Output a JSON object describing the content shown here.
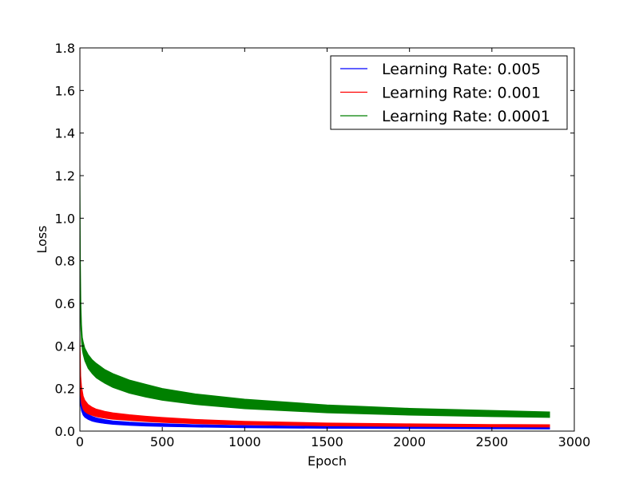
{
  "chart_data": {
    "type": "line",
    "title": "",
    "xlabel": "Epoch",
    "ylabel": "Loss",
    "xlim": [
      0,
      3000
    ],
    "ylim": [
      0.0,
      1.8
    ],
    "x_ticks": [
      "0",
      "500",
      "1000",
      "1500",
      "2000",
      "2500",
      "3000"
    ],
    "y_ticks": [
      "0.0",
      "0.2",
      "0.4",
      "0.6",
      "0.8",
      "1.0",
      "1.2",
      "1.4",
      "1.6",
      "1.8"
    ],
    "grid": false,
    "legend_position": "top-right",
    "series": [
      {
        "name": "Learning Rate: 0.005",
        "color": "#0000ff",
        "x": [
          0,
          5,
          10,
          20,
          30,
          50,
          75,
          100,
          150,
          200,
          300,
          400,
          500,
          700,
          1000,
          1500,
          2000,
          2500,
          2850
        ],
        "upper": [
          0.2,
          0.15,
          0.125,
          0.105,
          0.092,
          0.078,
          0.069,
          0.062,
          0.054,
          0.048,
          0.042,
          0.038,
          0.035,
          0.03,
          0.026,
          0.022,
          0.02,
          0.019,
          0.018
        ],
        "lower": [
          0.18,
          0.12,
          0.095,
          0.075,
          0.065,
          0.055,
          0.047,
          0.042,
          0.036,
          0.032,
          0.027,
          0.024,
          0.022,
          0.019,
          0.016,
          0.013,
          0.012,
          0.011,
          0.01
        ]
      },
      {
        "name": "Learning Rate: 0.001",
        "color": "#ff0000",
        "x": [
          0,
          5,
          10,
          20,
          30,
          50,
          75,
          100,
          150,
          200,
          300,
          400,
          500,
          700,
          1000,
          1500,
          2000,
          2500,
          2850
        ],
        "upper": [
          0.45,
          0.26,
          0.21,
          0.165,
          0.145,
          0.125,
          0.112,
          0.103,
          0.093,
          0.086,
          0.077,
          0.07,
          0.064,
          0.055,
          0.046,
          0.038,
          0.034,
          0.031,
          0.03
        ],
        "lower": [
          0.4,
          0.17,
          0.13,
          0.103,
          0.092,
          0.081,
          0.074,
          0.068,
          0.061,
          0.056,
          0.05,
          0.045,
          0.041,
          0.035,
          0.03,
          0.025,
          0.022,
          0.02,
          0.019
        ]
      },
      {
        "name": "Learning Rate: 0.0001",
        "color": "#008000",
        "x": [
          0,
          3,
          6,
          10,
          15,
          20,
          30,
          50,
          75,
          100,
          150,
          200,
          300,
          400,
          500,
          700,
          1000,
          1500,
          2000,
          2500,
          2850
        ],
        "upper": [
          1.25,
          0.8,
          0.6,
          0.5,
          0.44,
          0.42,
          0.39,
          0.36,
          0.335,
          0.318,
          0.29,
          0.27,
          0.24,
          0.22,
          0.2,
          0.175,
          0.15,
          0.123,
          0.107,
          0.097,
          0.09
        ],
        "lower": [
          1.05,
          0.6,
          0.48,
          0.42,
          0.38,
          0.36,
          0.33,
          0.295,
          0.27,
          0.25,
          0.225,
          0.205,
          0.178,
          0.16,
          0.145,
          0.125,
          0.105,
          0.086,
          0.075,
          0.068,
          0.064
        ]
      }
    ]
  }
}
